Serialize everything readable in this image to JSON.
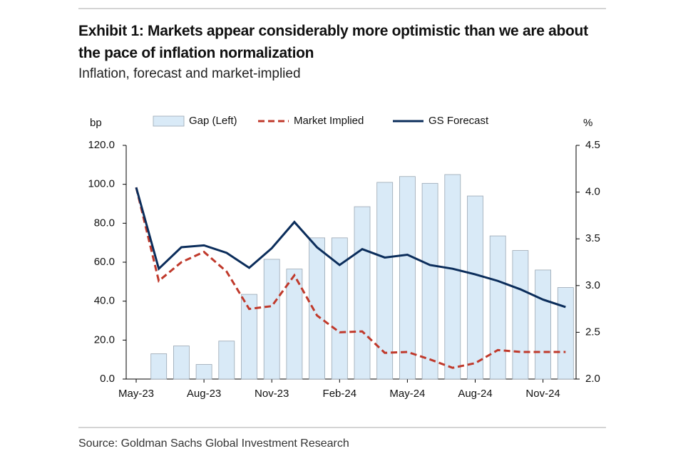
{
  "header": {
    "title": "Exhibit 1: Markets appear considerably more optimistic than we are about the pace of inflation normalization",
    "subtitle": "Inflation, forecast and market-implied"
  },
  "chart_data": {
    "type": "bar-line",
    "y_label": "bp",
    "y2_label": "%",
    "categories": [
      "May-23",
      null,
      null,
      "Aug-23",
      null,
      null,
      "Nov-23",
      null,
      null,
      "Feb-24",
      null,
      null,
      "May-24",
      null,
      null,
      "Aug-24",
      null,
      null,
      "Nov-24",
      null
    ],
    "series": [
      {
        "name": "Gap (Left)",
        "type": "bar",
        "color": "#d9eaf7",
        "values": [
          null,
          13,
          17,
          7.5,
          19.5,
          43.5,
          61.5,
          56.5,
          72.5,
          72.5,
          88.5,
          101,
          104,
          100.5,
          105,
          94,
          73.5,
          66,
          56,
          47
        ]
      },
      {
        "name": "Market Implied",
        "type": "line",
        "axis": "y2",
        "color": "#c0392b",
        "dashed": true,
        "values": [
          4.05,
          3.05,
          3.25,
          3.36,
          3.15,
          2.75,
          2.78,
          3.11,
          2.68,
          2.5,
          2.51,
          2.28,
          2.29,
          2.21,
          2.12,
          2.17,
          2.31,
          2.29,
          2.29,
          2.29
        ]
      },
      {
        "name": "GS Forecast",
        "type": "line",
        "axis": "y2",
        "color": "#0b2d5b",
        "dashed": false,
        "values": [
          4.05,
          3.18,
          3.41,
          3.43,
          3.35,
          3.19,
          3.4,
          3.68,
          3.41,
          3.22,
          3.39,
          3.3,
          3.33,
          3.22,
          3.18,
          3.12,
          3.05,
          2.96,
          2.85,
          2.77
        ]
      }
    ],
    "ylim": [
      0,
      120
    ],
    "yticks": [
      {
        "value": 0,
        "label": "0.0"
      },
      {
        "value": 20,
        "label": "20.0"
      },
      {
        "value": 40,
        "label": "40.0"
      },
      {
        "value": 60,
        "label": "60.0"
      },
      {
        "value": 80,
        "label": "80.0"
      },
      {
        "value": 100,
        "label": "100.0"
      },
      {
        "value": 120,
        "label": "120.0"
      }
    ],
    "y2lim": [
      2,
      4.5
    ],
    "y2ticks": [
      {
        "value": 2,
        "label": "2.0"
      },
      {
        "value": 2.5,
        "label": "2.5"
      },
      {
        "value": 3,
        "label": "3.0"
      },
      {
        "value": 3.5,
        "label": "3.5"
      },
      {
        "value": 4,
        "label": "4.0"
      },
      {
        "value": 4.5,
        "label": "4.5"
      }
    ],
    "source": "Source: Goldman Sachs Global Investment Research"
  }
}
